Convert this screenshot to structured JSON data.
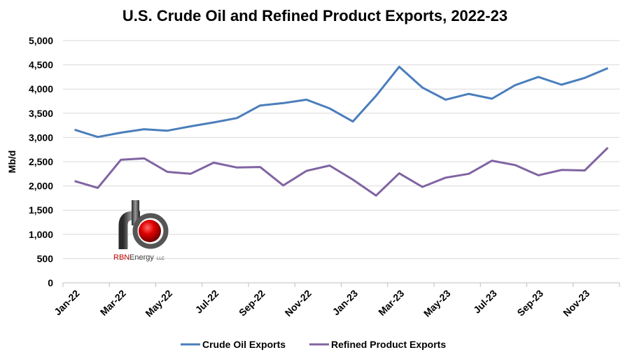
{
  "chart_data": {
    "type": "line",
    "title": "U.S. Crude Oil and Refined Product Exports, 2022-23",
    "ylabel": "Mb/d",
    "xlabel": "",
    "ylim": [
      0,
      5000
    ],
    "y_ticks": [
      "0",
      "500",
      "1,000",
      "1,500",
      "2,000",
      "2,500",
      "3,000",
      "3,500",
      "4,000",
      "4,500",
      "5,000"
    ],
    "y_tick_values": [
      0,
      500,
      1000,
      1500,
      2000,
      2500,
      3000,
      3500,
      4000,
      4500,
      5000
    ],
    "x_tick_labels": [
      "Jan-22",
      "Mar-22",
      "May-22",
      "Jul-22",
      "Sep-22",
      "Nov-22",
      "Jan-23",
      "Mar-23",
      "May-23",
      "Jul-23",
      "Sep-23",
      "Nov-23"
    ],
    "x": [
      "Jan-22",
      "Feb-22",
      "Mar-22",
      "Apr-22",
      "May-22",
      "Jun-22",
      "Jul-22",
      "Aug-22",
      "Sep-22",
      "Oct-22",
      "Nov-22",
      "Dec-22",
      "Jan-23",
      "Feb-23",
      "Mar-23",
      "Apr-23",
      "May-23",
      "Jun-23",
      "Jul-23",
      "Aug-23",
      "Sep-23",
      "Oct-23",
      "Nov-23",
      "Dec-23"
    ],
    "grid": "horizontal",
    "legend_position": "bottom",
    "series": [
      {
        "name": "Crude Oil Exports",
        "color": "#4a7ebb",
        "values": [
          3160,
          3010,
          3100,
          3170,
          3140,
          3230,
          3310,
          3400,
          3660,
          3710,
          3780,
          3600,
          3330,
          3860,
          4460,
          4030,
          3780,
          3900,
          3800,
          4080,
          4250,
          4090,
          4230,
          4430
        ]
      },
      {
        "name": "Refined Product Exports",
        "color": "#8064a2",
        "values": [
          2100,
          1960,
          2540,
          2570,
          2290,
          2250,
          2480,
          2380,
          2390,
          2010,
          2310,
          2420,
          2130,
          1800,
          2260,
          1980,
          2170,
          2250,
          2520,
          2430,
          2220,
          2330,
          2320,
          2790
        ]
      }
    ]
  },
  "logo": {
    "text_red": "RBN",
    "text_dark": "Energy",
    "text_small": "LLC"
  }
}
